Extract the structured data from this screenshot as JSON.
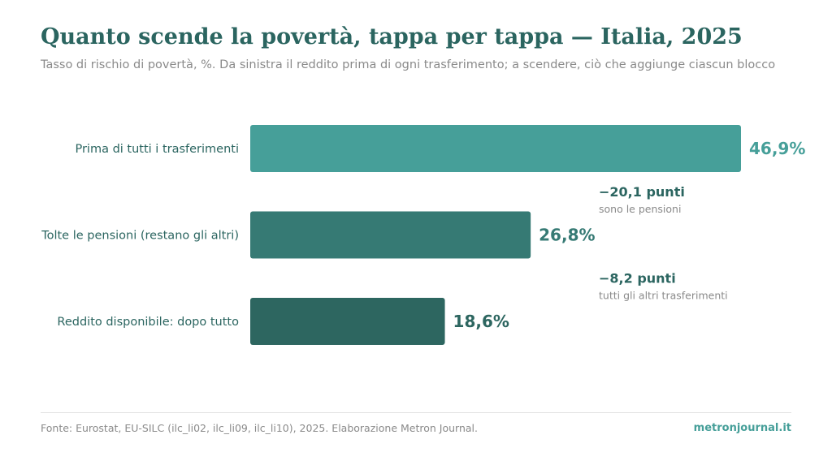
{
  "header": {
    "title": "Quanto scende la povertà, tappa per tappa — Italia, 2025",
    "subtitle": "Tasso di rischio di povertà, %. Da sinistra il reddito prima di ogni trasferimento; a scendere, ciò che aggiunge ciascun blocco"
  },
  "chart_data": {
    "type": "bar",
    "orientation": "horizontal",
    "categories": [
      "Prima di tutti i trasferimenti",
      "Tolte le pensioni (restano gli altri)",
      "Reddito disponibile: dopo tutto"
    ],
    "values": [
      46.9,
      26.8,
      18.6
    ],
    "value_labels": [
      "46,9%",
      "26,8%",
      "18,6%"
    ],
    "unit": "%",
    "xlim": [
      0,
      46.9
    ],
    "grid": false,
    "legend": false,
    "colors": [
      "#469f99",
      "#367a74",
      "#2d6660"
    ],
    "annotations": [
      {
        "value": "−20,1 punti",
        "note": "sono le pensioni"
      },
      {
        "value": "−8,2 punti",
        "note": "tutti gli altri trasferimenti"
      }
    ]
  },
  "footer": {
    "source": "Fonte: Eurostat, EU-SILC (ilc_li02, ilc_li09, ilc_li10), 2025. Elaborazione Metron Journal.",
    "brand": "metronjournal.it"
  }
}
